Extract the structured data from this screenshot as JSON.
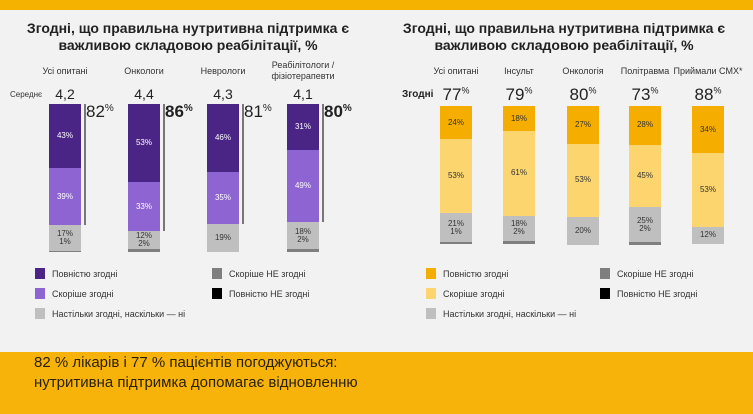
{
  "chart_data": [
    {
      "type": "bar",
      "stacked": true,
      "title": "Згодні, що правильна нутритивна підтримка є важливою складовою реабілітації, %",
      "row_label": "Середнє",
      "categories": [
        "Усі опитані",
        "Онкологи",
        "Неврологи",
        "Реабілітологи / фізіотерапевти"
      ],
      "averages": [
        "4,2",
        "4,4",
        "4,3",
        "4,1"
      ],
      "totals": [
        {
          "value": "82",
          "emphasis": false
        },
        {
          "value": "86",
          "emphasis": true
        },
        {
          "value": "81",
          "emphasis": false
        },
        {
          "value": "80",
          "emphasis": true
        }
      ],
      "series": [
        {
          "name": "Повністю згодні",
          "color": "#4B2585",
          "values": [
            43,
            53,
            46,
            31
          ]
        },
        {
          "name": "Скоріше згодні",
          "color": "#8E63D2",
          "values": [
            39,
            33,
            35,
            49
          ]
        },
        {
          "name": "Настільки згодні, наскільки — ні",
          "color": "#BFBFBF",
          "values": [
            17,
            12,
            19,
            18
          ]
        },
        {
          "name": "Скоріше НЕ згодні",
          "color": "#7F7F7F",
          "values": [
            1,
            2,
            0,
            2
          ]
        },
        {
          "name": "Повністю НЕ згодні",
          "color": "#000000",
          "values": [
            0,
            0,
            0,
            0
          ]
        }
      ]
    },
    {
      "type": "bar",
      "stacked": true,
      "title": "Згодні, що правильна нутритивна підтримка є важливою складовою реабілітації, %",
      "row_label": "Згодні",
      "categories": [
        "Усі опитані",
        "Інсульт",
        "Онкологія",
        "Політравма",
        "Приймали СМХ*"
      ],
      "totals": [
        {
          "value": "77"
        },
        {
          "value": "79"
        },
        {
          "value": "80"
        },
        {
          "value": "73"
        },
        {
          "value": "88"
        }
      ],
      "series": [
        {
          "name": "Повністю згодні",
          "color": "#F5AE00",
          "values": [
            24,
            18,
            27,
            28,
            34
          ]
        },
        {
          "name": "Скоріше згодні",
          "color": "#FCD56E",
          "values": [
            53,
            61,
            53,
            45,
            53
          ]
        },
        {
          "name": "Настільки згодні, наскільки — ні",
          "color": "#BFBFBF",
          "values": [
            21,
            18,
            20,
            25,
            12
          ]
        },
        {
          "name": "Скоріше НЕ згодні",
          "color": "#7F7F7F",
          "values": [
            1,
            2,
            0,
            2,
            0
          ]
        },
        {
          "name": "Повністю НЕ згодні",
          "color": "#000000",
          "values": [
            0,
            0,
            0,
            0,
            0
          ]
        }
      ]
    }
  ],
  "banner": {
    "line1": "82 % лікарів і 77 % пацієнтів погоджуються:",
    "line2": "нутритивна підтримка допомагає відновленню"
  }
}
